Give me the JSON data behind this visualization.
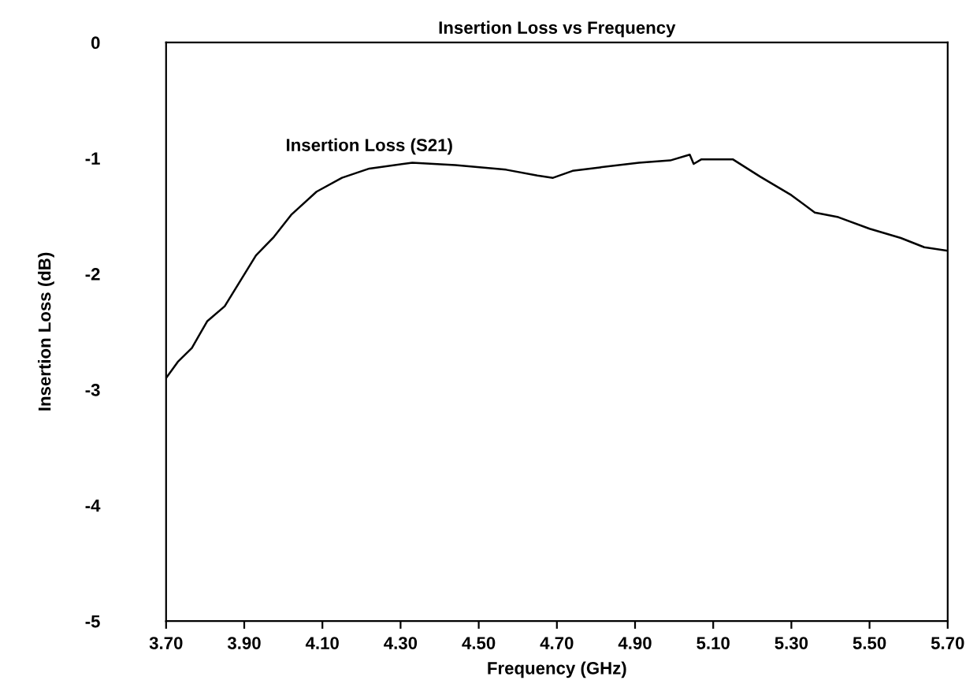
{
  "chart_data": {
    "type": "line",
    "title": "Insertion Loss vs Frequency",
    "xlabel": "Frequency (GHz)",
    "ylabel": "Insertion Loss (dB)",
    "series": [
      {
        "name": "Insertion Loss (S21)",
        "color": "#000000",
        "x": [
          3.7,
          3.73,
          3.766,
          3.805,
          3.85,
          3.93,
          3.976,
          4.02,
          4.085,
          4.15,
          4.22,
          4.33,
          4.44,
          4.57,
          4.65,
          4.69,
          4.74,
          4.81,
          4.91,
          4.99,
          5.04,
          5.05,
          5.07,
          5.15,
          5.22,
          5.3,
          5.36,
          5.42,
          5.5,
          5.58,
          5.64,
          5.7
        ],
        "values": [
          -2.9,
          -2.76,
          -2.64,
          -2.41,
          -2.28,
          -1.84,
          -1.68,
          -1.49,
          -1.29,
          -1.17,
          -1.09,
          -1.04,
          -1.06,
          -1.1,
          -1.15,
          -1.17,
          -1.11,
          -1.08,
          -1.04,
          -1.02,
          -0.97,
          -1.05,
          -1.01,
          -1.01,
          -1.16,
          -1.32,
          -1.47,
          -1.51,
          -1.61,
          -1.69,
          -1.77,
          -1.8
        ]
      }
    ],
    "xlim": [
      3.7,
      5.7
    ],
    "ylim": [
      -5,
      0
    ],
    "xticks": [
      {
        "value": 3.7,
        "label": "3.70"
      },
      {
        "value": 3.9,
        "label": "3.90"
      },
      {
        "value": 4.1,
        "label": "4.10"
      },
      {
        "value": 4.3,
        "label": "4.30"
      },
      {
        "value": 4.5,
        "label": "4.50"
      },
      {
        "value": 4.7,
        "label": "4.70"
      },
      {
        "value": 4.9,
        "label": "4.90"
      },
      {
        "value": 5.1,
        "label": "5.10"
      },
      {
        "value": 5.3,
        "label": "5.30"
      },
      {
        "value": 5.5,
        "label": "5.50"
      },
      {
        "value": 5.7,
        "label": "5.70"
      }
    ],
    "yticks": [
      0,
      -1,
      -2,
      -3,
      -4,
      -5
    ],
    "grid": false,
    "legend": false,
    "marker": "none",
    "line_style": "solid"
  }
}
